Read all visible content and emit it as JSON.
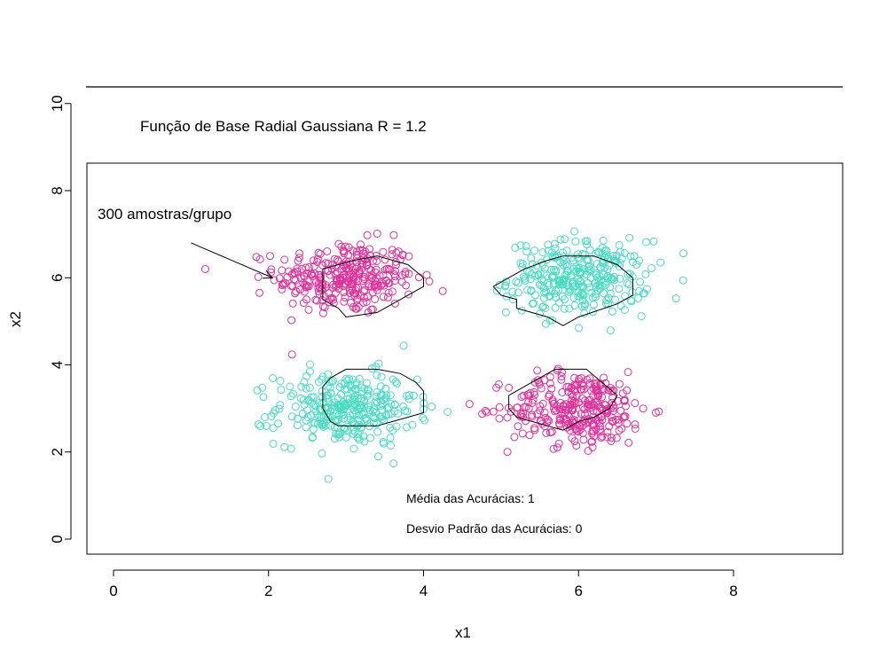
{
  "chart_data": {
    "type": "scatter",
    "title": "Função de Base Radial Gaussiana R = 1.2",
    "xlabel": "x1",
    "ylabel": "x2",
    "xlim": [
      -0.35,
      9.35
    ],
    "ylim": [
      -0.35,
      8.65
    ],
    "ylim_axis_extended_to": 10,
    "x_ticks": [
      "0",
      "2",
      "4",
      "6",
      "8"
    ],
    "y_ticks": [
      "0",
      "2",
      "4",
      "6",
      "8",
      "10"
    ],
    "grid": false,
    "annotation": "300 amostras/grupo",
    "arrow": {
      "from": [
        1.0,
        6.8
      ],
      "to": [
        2.05,
        6.0
      ]
    },
    "stats": {
      "mean_text": "Média das Acurácias: 1",
      "sd_text": "Desvio Padrão das Acurácias: 0"
    },
    "colors": {
      "magenta": "#e0309a",
      "turquoise": "#48dcc2",
      "contour": "#000000"
    },
    "groups": [
      {
        "color": "magenta",
        "center": [
          3.0,
          6.0
        ],
        "sd": [
          0.45,
          0.42
        ],
        "n": 300
      },
      {
        "color": "turquoise",
        "center": [
          6.0,
          6.0
        ],
        "sd": [
          0.45,
          0.42
        ],
        "n": 300
      },
      {
        "color": "turquoise",
        "center": [
          3.0,
          3.0
        ],
        "sd": [
          0.45,
          0.42
        ],
        "n": 300
      },
      {
        "color": "magenta",
        "center": [
          6.0,
          3.0
        ],
        "sd": [
          0.45,
          0.42
        ],
        "n": 300
      }
    ],
    "contours": [
      [
        [
          2.7,
          5.7
        ],
        [
          2.7,
          6.2
        ],
        [
          3.1,
          6.4
        ],
        [
          3.4,
          6.5
        ],
        [
          3.8,
          6.3
        ],
        [
          4.0,
          6.0
        ],
        [
          4.0,
          5.8
        ],
        [
          3.8,
          5.6
        ],
        [
          3.6,
          5.4
        ],
        [
          3.4,
          5.2
        ],
        [
          3.0,
          5.1
        ],
        [
          2.9,
          5.3
        ],
        [
          2.7,
          5.5
        ],
        [
          2.7,
          5.7
        ]
      ],
      [
        [
          4.9,
          5.8
        ],
        [
          5.3,
          6.2
        ],
        [
          5.6,
          6.4
        ],
        [
          5.8,
          6.5
        ],
        [
          6.2,
          6.5
        ],
        [
          6.5,
          6.3
        ],
        [
          6.7,
          6.0
        ],
        [
          6.7,
          5.6
        ],
        [
          6.5,
          5.4
        ],
        [
          6.0,
          5.1
        ],
        [
          5.8,
          4.9
        ],
        [
          5.6,
          5.1
        ],
        [
          5.4,
          5.2
        ],
        [
          5.2,
          5.3
        ],
        [
          5.2,
          5.5
        ],
        [
          5.0,
          5.6
        ],
        [
          4.9,
          5.8
        ]
      ],
      [
        [
          2.7,
          3.0
        ],
        [
          2.7,
          3.5
        ],
        [
          2.8,
          3.7
        ],
        [
          3.0,
          3.9
        ],
        [
          3.4,
          3.9
        ],
        [
          3.7,
          3.8
        ],
        [
          3.9,
          3.6
        ],
        [
          4.0,
          3.4
        ],
        [
          4.0,
          2.9
        ],
        [
          3.8,
          2.8
        ],
        [
          3.6,
          2.7
        ],
        [
          3.4,
          2.6
        ],
        [
          2.9,
          2.6
        ],
        [
          2.8,
          2.7
        ],
        [
          2.7,
          3.0
        ]
      ],
      [
        [
          5.1,
          3.0
        ],
        [
          5.1,
          3.3
        ],
        [
          5.4,
          3.6
        ],
        [
          5.7,
          3.9
        ],
        [
          6.1,
          3.9
        ],
        [
          6.3,
          3.6
        ],
        [
          6.5,
          3.3
        ],
        [
          6.4,
          3.0
        ],
        [
          6.2,
          2.8
        ],
        [
          6.0,
          2.7
        ],
        [
          5.8,
          2.5
        ],
        [
          5.6,
          2.6
        ],
        [
          5.4,
          2.7
        ],
        [
          5.2,
          2.8
        ],
        [
          5.1,
          3.0
        ]
      ]
    ]
  }
}
